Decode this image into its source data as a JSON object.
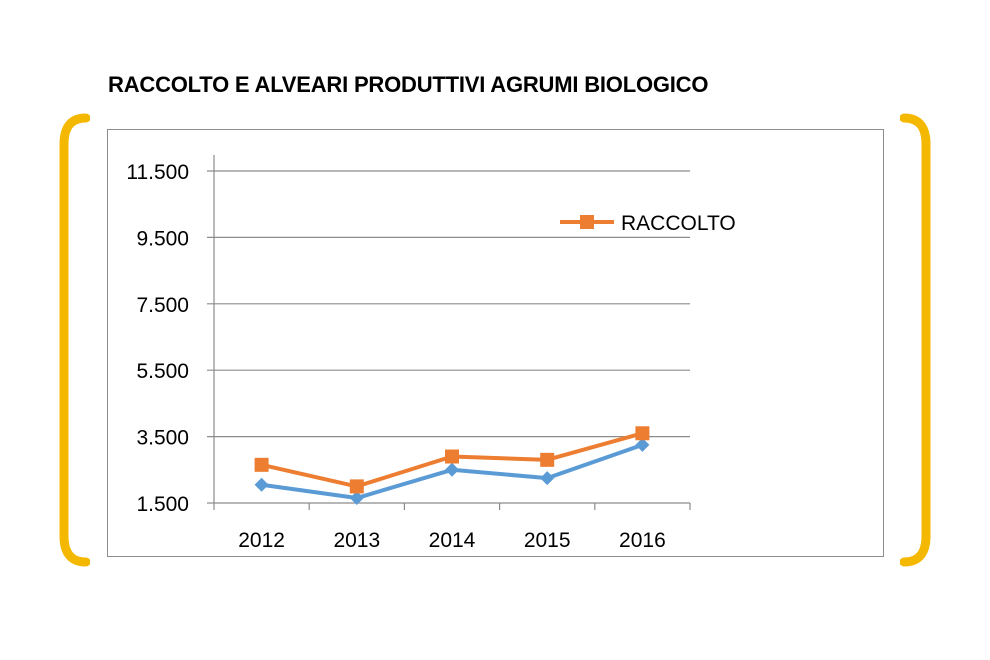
{
  "page": {
    "title": "RACCOLTO E ALVEARI PRODUTTIVI AGRUMI BIOLOGICO",
    "accent_color": "#f5b800"
  },
  "chart_data": {
    "type": "line",
    "title": "RACCOLTO E ALVEARI PRODUTTIVI AGRUMI BIOLOGICO",
    "xlabel": "",
    "ylabel": "",
    "categories": [
      "2012",
      "2013",
      "2014",
      "2015",
      "2016"
    ],
    "yticks": [
      1500,
      3500,
      5500,
      7500,
      9500,
      11500
    ],
    "ytick_labels": [
      "1.500",
      "3.500",
      "5.500",
      "7.500",
      "9.500",
      "11.500"
    ],
    "ylim": [
      1500,
      11500
    ],
    "grid": true,
    "legend_position": "top-right",
    "series": [
      {
        "name": "RACCOLTO",
        "values": [
          2650,
          2000,
          2900,
          2800,
          3600
        ],
        "color": "#ed7d31",
        "marker": "square",
        "in_legend": true
      },
      {
        "values": [
          2050,
          1650,
          2500,
          2250,
          3250
        ],
        "color": "#5b9bd5",
        "marker": "diamond",
        "in_legend": false
      }
    ]
  }
}
